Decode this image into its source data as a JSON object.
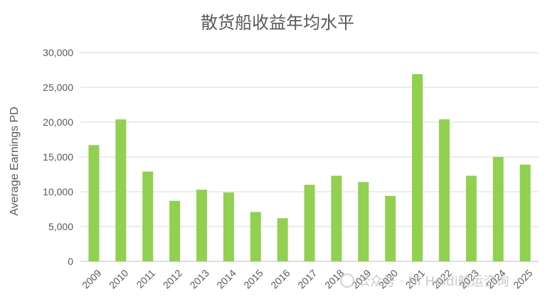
{
  "chart_data": {
    "type": "bar",
    "title": "散货船收益年均水平",
    "ylabel": "Average Earnings PD",
    "xlabel": "",
    "categories": [
      "2009",
      "2010",
      "2011",
      "2012",
      "2013",
      "2014",
      "2015",
      "2016",
      "2017",
      "2018",
      "2019",
      "2020",
      "2021",
      "2022",
      "2023",
      "2024",
      "2025"
    ],
    "values": [
      16700,
      20400,
      12900,
      8700,
      10300,
      9900,
      7100,
      6200,
      11000,
      12300,
      11400,
      9400,
      26900,
      20400,
      12300,
      15000,
      13900
    ],
    "ylim": [
      0,
      30000
    ],
    "yticks": [
      0,
      5000,
      10000,
      15000,
      20000,
      25000,
      30000
    ],
    "ytick_labels": [
      "0",
      "5,000",
      "10,000",
      "15,000",
      "20,000",
      "25,000",
      "30,000"
    ],
    "bar_color": "#92d050",
    "grid": true,
    "legend": "none"
  },
  "watermark": "公众号 · Hi Heidi航运咨询"
}
